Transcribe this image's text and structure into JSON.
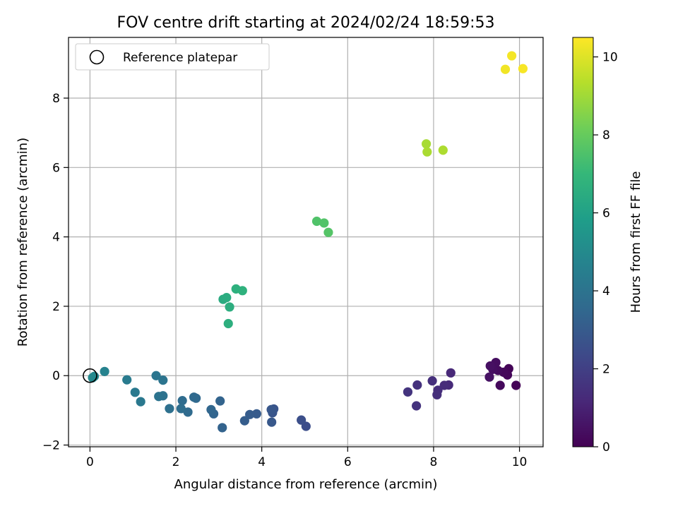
{
  "chart_data": {
    "type": "scatter",
    "title": "FOV centre drift starting at 2024/02/24 18:59:53",
    "xlabel": "Angular distance from reference (arcmin)",
    "ylabel": "Rotation from reference (arcmin)",
    "xlim": [
      -0.5,
      10.55
    ],
    "ylim": [
      -2.05,
      9.75
    ],
    "xticks": [
      0,
      2,
      4,
      6,
      8,
      10
    ],
    "yticks": [
      -2,
      0,
      2,
      4,
      6,
      8
    ],
    "grid": true,
    "legend": {
      "placement": "top-left",
      "entries": [
        "Reference platepar"
      ]
    },
    "reference_point": {
      "x": 0,
      "y": 0
    },
    "colorbar": {
      "label": "Hours from first FF file",
      "range": [
        0,
        10.5
      ],
      "ticks": [
        0,
        2,
        4,
        6,
        8,
        10
      ],
      "colormap": "viridis"
    },
    "points": [
      {
        "x": 9.92,
        "y": -0.28,
        "h": 0.05
      },
      {
        "x": 9.75,
        "y": 0.2,
        "h": 0.1
      },
      {
        "x": 9.72,
        "y": 0.02,
        "h": 0.15
      },
      {
        "x": 9.63,
        "y": 0.1,
        "h": 0.2
      },
      {
        "x": 9.55,
        "y": -0.28,
        "h": 0.25
      },
      {
        "x": 9.5,
        "y": 0.15,
        "h": 0.3
      },
      {
        "x": 9.45,
        "y": 0.38,
        "h": 0.35
      },
      {
        "x": 9.38,
        "y": 0.18,
        "h": 0.4
      },
      {
        "x": 9.32,
        "y": 0.28,
        "h": 0.45
      },
      {
        "x": 9.3,
        "y": -0.04,
        "h": 0.5
      },
      {
        "x": 8.4,
        "y": 0.08,
        "h": 1.2
      },
      {
        "x": 8.35,
        "y": -0.27,
        "h": 1.25
      },
      {
        "x": 8.25,
        "y": -0.28,
        "h": 1.3
      },
      {
        "x": 8.1,
        "y": -0.42,
        "h": 1.35
      },
      {
        "x": 8.08,
        "y": -0.55,
        "h": 1.4
      },
      {
        "x": 7.97,
        "y": -0.15,
        "h": 1.45
      },
      {
        "x": 7.62,
        "y": -0.27,
        "h": 1.5
      },
      {
        "x": 7.6,
        "y": -0.87,
        "h": 1.55
      },
      {
        "x": 7.4,
        "y": -0.47,
        "h": 1.6
      },
      {
        "x": 5.03,
        "y": -1.46,
        "h": 2.5
      },
      {
        "x": 4.92,
        "y": -1.28,
        "h": 2.55
      },
      {
        "x": 4.28,
        "y": -0.96,
        "h": 2.75
      },
      {
        "x": 4.25,
        "y": -1.07,
        "h": 2.8
      },
      {
        "x": 4.22,
        "y": -0.98,
        "h": 2.85
      },
      {
        "x": 4.23,
        "y": -1.34,
        "h": 2.9
      },
      {
        "x": 3.88,
        "y": -1.1,
        "h": 3.0
      },
      {
        "x": 3.72,
        "y": -1.12,
        "h": 3.05
      },
      {
        "x": 3.6,
        "y": -1.3,
        "h": 3.1
      },
      {
        "x": 3.08,
        "y": -1.5,
        "h": 3.3
      },
      {
        "x": 3.03,
        "y": -0.73,
        "h": 3.35
      },
      {
        "x": 2.88,
        "y": -1.1,
        "h": 3.4
      },
      {
        "x": 2.82,
        "y": -0.98,
        "h": 3.45
      },
      {
        "x": 2.47,
        "y": -0.65,
        "h": 3.55
      },
      {
        "x": 2.42,
        "y": -0.62,
        "h": 3.6
      },
      {
        "x": 2.28,
        "y": -1.05,
        "h": 3.65
      },
      {
        "x": 2.15,
        "y": -0.72,
        "h": 3.7
      },
      {
        "x": 2.12,
        "y": -0.95,
        "h": 3.75
      },
      {
        "x": 1.85,
        "y": -0.95,
        "h": 3.85
      },
      {
        "x": 1.7,
        "y": -0.58,
        "h": 3.95
      },
      {
        "x": 1.6,
        "y": -0.6,
        "h": 4.0
      },
      {
        "x": 1.7,
        "y": -0.13,
        "h": 4.05
      },
      {
        "x": 1.54,
        "y": 0.0,
        "h": 4.1
      },
      {
        "x": 1.18,
        "y": -0.75,
        "h": 4.2
      },
      {
        "x": 1.05,
        "y": -0.48,
        "h": 4.25
      },
      {
        "x": 0.86,
        "y": -0.12,
        "h": 4.35
      },
      {
        "x": 0.34,
        "y": 0.12,
        "h": 4.65
      },
      {
        "x": 0.1,
        "y": -0.02,
        "h": 4.9
      },
      {
        "x": 0.06,
        "y": -0.06,
        "h": 4.95
      },
      {
        "x": 3.1,
        "y": 2.2,
        "h": 6.45
      },
      {
        "x": 3.18,
        "y": 2.25,
        "h": 6.5
      },
      {
        "x": 3.25,
        "y": 1.98,
        "h": 6.55
      },
      {
        "x": 3.22,
        "y": 1.5,
        "h": 6.6
      },
      {
        "x": 3.4,
        "y": 2.5,
        "h": 6.65
      },
      {
        "x": 3.55,
        "y": 2.45,
        "h": 6.7
      },
      {
        "x": 5.28,
        "y": 4.45,
        "h": 7.55
      },
      {
        "x": 5.45,
        "y": 4.4,
        "h": 7.6
      },
      {
        "x": 5.55,
        "y": 4.13,
        "h": 7.65
      },
      {
        "x": 7.83,
        "y": 6.68,
        "h": 9.1
      },
      {
        "x": 7.85,
        "y": 6.45,
        "h": 9.15
      },
      {
        "x": 8.22,
        "y": 6.5,
        "h": 9.2
      },
      {
        "x": 9.67,
        "y": 8.83,
        "h": 10.3
      },
      {
        "x": 9.82,
        "y": 9.22,
        "h": 10.35
      },
      {
        "x": 10.08,
        "y": 8.85,
        "h": 10.4
      }
    ]
  }
}
